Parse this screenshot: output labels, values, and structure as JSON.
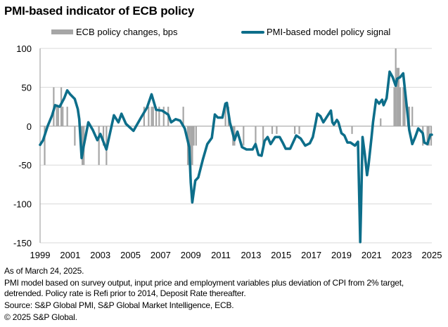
{
  "chart_data": {
    "type": "bar+line",
    "title": "PMI-based indicator of ECB policy",
    "xlabel": "",
    "ylabel": "",
    "ylim": [
      -150,
      100
    ],
    "xlim": [
      1999,
      2025
    ],
    "yticks": [
      100,
      50,
      0,
      -50,
      -100,
      -150
    ],
    "xticks": [
      1999,
      2001,
      2003,
      2005,
      2007,
      2009,
      2011,
      2013,
      2015,
      2017,
      2019,
      2021,
      2023,
      2025
    ],
    "grid": true,
    "legend_position": "top",
    "legend": [
      "ECB policy changes, bps",
      "PMI-based model policy signal"
    ],
    "colors": {
      "bars": "#a6a6a6",
      "line": "#0d6e8a",
      "grid": "#d9d9d9",
      "axis": "#a6a6a6"
    },
    "series": [
      {
        "name": "ECB policy changes, bps",
        "type": "bar",
        "points": [
          [
            1999.3,
            -50
          ],
          [
            1999.9,
            50
          ],
          [
            2000.1,
            25
          ],
          [
            2000.2,
            25
          ],
          [
            2000.4,
            50
          ],
          [
            2000.5,
            25
          ],
          [
            2000.8,
            25
          ],
          [
            2001.3,
            -25
          ],
          [
            2001.7,
            -25
          ],
          [
            2001.8,
            -50
          ],
          [
            2001.9,
            -50
          ],
          [
            2002.9,
            -50
          ],
          [
            2003.2,
            -25
          ],
          [
            2003.4,
            -50
          ],
          [
            2005.9,
            25
          ],
          [
            2006.2,
            25
          ],
          [
            2006.4,
            25
          ],
          [
            2006.5,
            25
          ],
          [
            2006.7,
            25
          ],
          [
            2006.9,
            25
          ],
          [
            2007.2,
            25
          ],
          [
            2007.5,
            25
          ],
          [
            2008.5,
            25
          ],
          [
            2008.8,
            -50
          ],
          [
            2008.9,
            -50
          ],
          [
            2009.0,
            -75
          ],
          [
            2009.1,
            -50
          ],
          [
            2009.2,
            -25
          ],
          [
            2009.35,
            -25
          ],
          [
            2011.3,
            25
          ],
          [
            2011.5,
            25
          ],
          [
            2011.8,
            -25
          ],
          [
            2011.9,
            -25
          ],
          [
            2012.5,
            -25
          ],
          [
            2013.3,
            -25
          ],
          [
            2013.8,
            -25
          ],
          [
            2014.4,
            -10
          ],
          [
            2014.7,
            -10
          ],
          [
            2015.9,
            -10
          ],
          [
            2016.2,
            -10
          ],
          [
            2019.7,
            -10
          ],
          [
            2021.6,
            10
          ],
          [
            2022.5,
            50
          ],
          [
            2022.6,
            100
          ],
          [
            2022.7,
            75
          ],
          [
            2022.8,
            75
          ],
          [
            2022.9,
            50
          ],
          [
            2023.1,
            50
          ],
          [
            2023.2,
            50
          ],
          [
            2023.4,
            25
          ],
          [
            2023.5,
            25
          ],
          [
            2023.7,
            25
          ],
          [
            2024.4,
            -25
          ],
          [
            2024.7,
            -25
          ],
          [
            2024.8,
            -25
          ],
          [
            2024.95,
            -25
          ]
        ]
      },
      {
        "name": "PMI-based model policy signal",
        "type": "line",
        "points": [
          [
            1999.0,
            -24
          ],
          [
            1999.2,
            -18
          ],
          [
            1999.5,
            0
          ],
          [
            1999.8,
            14
          ],
          [
            2000.0,
            27
          ],
          [
            2000.3,
            25
          ],
          [
            2000.6,
            36
          ],
          [
            2000.8,
            46
          ],
          [
            2001.0,
            41
          ],
          [
            2001.3,
            35
          ],
          [
            2001.5,
            22
          ],
          [
            2001.6,
            9
          ],
          [
            2001.76,
            -41
          ],
          [
            2001.9,
            -25
          ],
          [
            2002.2,
            5
          ],
          [
            2002.5,
            -5
          ],
          [
            2002.8,
            -18
          ],
          [
            2003.0,
            -10
          ],
          [
            2003.4,
            -30
          ],
          [
            2003.9,
            14
          ],
          [
            2004.2,
            5
          ],
          [
            2004.4,
            16
          ],
          [
            2004.7,
            3
          ],
          [
            2005.2,
            -6
          ],
          [
            2005.7,
            11
          ],
          [
            2006.1,
            24
          ],
          [
            2006.4,
            41
          ],
          [
            2006.7,
            21
          ],
          [
            2007.1,
            20
          ],
          [
            2007.5,
            15
          ],
          [
            2007.7,
            5
          ],
          [
            2008.0,
            9
          ],
          [
            2008.3,
            7
          ],
          [
            2008.6,
            -3
          ],
          [
            2008.9,
            -27
          ],
          [
            2009.0,
            -72
          ],
          [
            2009.1,
            -98
          ],
          [
            2009.3,
            -70
          ],
          [
            2009.5,
            -66
          ],
          [
            2009.8,
            -43
          ],
          [
            2010.1,
            -23
          ],
          [
            2010.4,
            -15
          ],
          [
            2010.6,
            15
          ],
          [
            2010.8,
            11
          ],
          [
            2011.1,
            11
          ],
          [
            2011.3,
            29
          ],
          [
            2011.4,
            30
          ],
          [
            2011.6,
            5
          ],
          [
            2011.9,
            -18
          ],
          [
            2012.1,
            -7
          ],
          [
            2012.4,
            -27
          ],
          [
            2012.7,
            -30
          ],
          [
            2013.1,
            -30
          ],
          [
            2013.3,
            -23
          ],
          [
            2013.5,
            -37
          ],
          [
            2013.7,
            -38
          ],
          [
            2013.9,
            -19
          ],
          [
            2014.1,
            -14
          ],
          [
            2014.3,
            -23
          ],
          [
            2014.6,
            -14
          ],
          [
            2014.9,
            -14
          ],
          [
            2015.1,
            -21
          ],
          [
            2015.3,
            -29
          ],
          [
            2015.6,
            -29
          ],
          [
            2016.0,
            -12
          ],
          [
            2016.3,
            -16
          ],
          [
            2016.6,
            -25
          ],
          [
            2016.9,
            -22
          ],
          [
            2017.1,
            -14
          ],
          [
            2017.3,
            5
          ],
          [
            2017.4,
            16
          ],
          [
            2017.6,
            13
          ],
          [
            2017.8,
            5
          ],
          [
            2018.1,
            14
          ],
          [
            2018.3,
            20
          ],
          [
            2018.4,
            5
          ],
          [
            2018.5,
            2
          ],
          [
            2018.7,
            8
          ],
          [
            2018.8,
            5
          ],
          [
            2019.0,
            -9
          ],
          [
            2019.2,
            -12
          ],
          [
            2019.4,
            -21
          ],
          [
            2019.6,
            -21
          ],
          [
            2019.9,
            -25
          ],
          [
            2020.1,
            -20
          ],
          [
            2020.2,
            -108
          ],
          [
            2020.25,
            -149
          ],
          [
            2020.3,
            -108
          ],
          [
            2020.4,
            -14
          ],
          [
            2020.55,
            -36
          ],
          [
            2020.7,
            -63
          ],
          [
            2020.8,
            -50
          ],
          [
            2021.0,
            -14
          ],
          [
            2021.1,
            5
          ],
          [
            2021.3,
            34
          ],
          [
            2021.5,
            29
          ],
          [
            2021.7,
            34
          ],
          [
            2021.8,
            27
          ],
          [
            2022.0,
            36
          ],
          [
            2022.2,
            70
          ],
          [
            2022.4,
            63
          ],
          [
            2022.6,
            52
          ],
          [
            2022.7,
            61
          ],
          [
            2022.9,
            63
          ],
          [
            2023.1,
            68
          ],
          [
            2023.2,
            50
          ],
          [
            2023.4,
            14
          ],
          [
            2023.5,
            -5
          ],
          [
            2023.7,
            -23
          ],
          [
            2023.9,
            -14
          ],
          [
            2024.1,
            -3
          ],
          [
            2024.4,
            -9
          ],
          [
            2024.5,
            -21
          ],
          [
            2024.7,
            -23
          ],
          [
            2024.9,
            -11
          ],
          [
            2025.0,
            -11
          ]
        ]
      }
    ]
  },
  "footer": {
    "as_of": "As of March 24, 2025.",
    "note_line1": "PMI model based on survey output, input price and employment variables plus deviation of CPI from 2% target,",
    "note_line2": "detrended. Policy rate is Refi prior to 2014, Deposit Rate thereafter.",
    "source": "Source: S&P Global PMI, S&P Global Market Intelligence, ECB.",
    "copyright": "© 2025 S&P Global."
  }
}
